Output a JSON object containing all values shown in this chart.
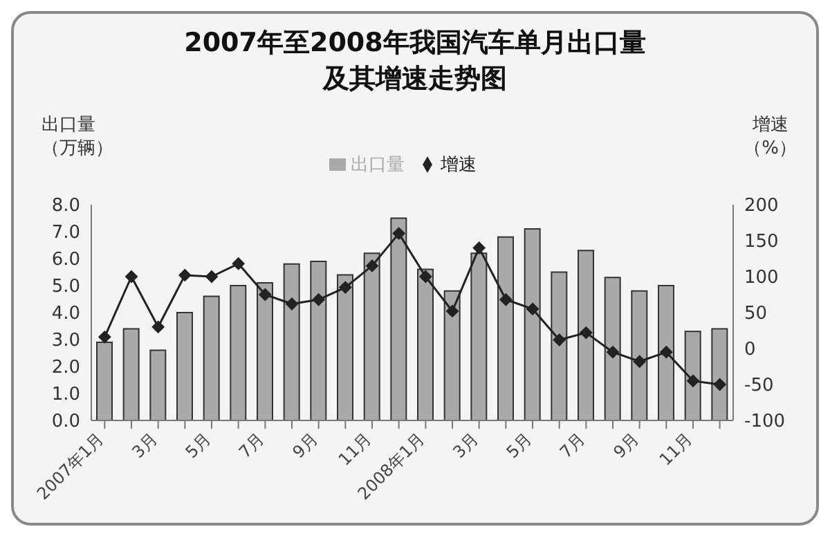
{
  "chart_data": {
    "type": "bar",
    "title": "2007年至2008年我国汽车单月出口量及其增速走势图",
    "ylabel": "出口量（万辆）",
    "y2label": "增速（%）",
    "categories": [
      "2007年1月",
      null,
      "3月",
      null,
      "5月",
      null,
      "7月",
      null,
      "9月",
      null,
      "11月",
      null,
      "2008年1月",
      null,
      "3月",
      null,
      "5月",
      null,
      "7月",
      null,
      "9月",
      null,
      "11月",
      null
    ],
    "series": [
      {
        "name": "出口量",
        "color": "#a9a9a9",
        "values": [
          2.9,
          3.4,
          2.6,
          4.0,
          4.6,
          5.0,
          5.1,
          5.8,
          5.9,
          5.4,
          6.2,
          7.5,
          5.6,
          4.8,
          6.2,
          6.8,
          7.1,
          5.5,
          6.3,
          5.3,
          4.8,
          5.0,
          3.3,
          3.4
        ]
      },
      {
        "name": "增速",
        "type": "line",
        "axis": "y2",
        "color": "#222222",
        "marker": "diamond",
        "values": [
          16,
          100,
          30,
          102,
          100,
          118,
          75,
          62,
          68,
          85,
          115,
          160,
          100,
          52,
          140,
          68,
          55,
          12,
          22,
          -5,
          -18,
          -5,
          -45,
          -50
        ]
      }
    ],
    "ylim": [
      0,
      8
    ],
    "yticks": [
      {
        "value": 0,
        "label": "0.0"
      },
      {
        "value": 1,
        "label": "1.0"
      },
      {
        "value": 2,
        "label": "2.0"
      },
      {
        "value": 3,
        "label": "3.0"
      },
      {
        "value": 4,
        "label": "4.0"
      },
      {
        "value": 5,
        "label": "5.0"
      },
      {
        "value": 6,
        "label": "6.0"
      },
      {
        "value": 7,
        "label": "7.0"
      },
      {
        "value": 8,
        "label": "8.0"
      }
    ],
    "y2lim": [
      -100,
      200
    ],
    "y2ticks": [
      -100,
      -50,
      0,
      50,
      100,
      150,
      200
    ],
    "legend": "top"
  }
}
